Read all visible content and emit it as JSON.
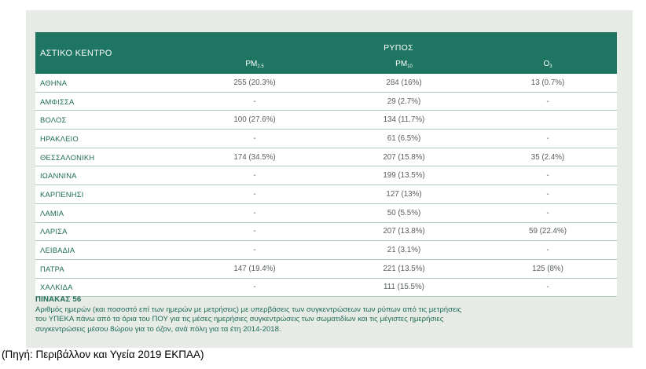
{
  "table": {
    "city_header": "ΑΣΤΙΚΟ ΚΕΝΤΡΟ",
    "group_header": "ΡΥΠΟΣ",
    "pollutants": [
      {
        "base": "PM",
        "sub": "2.5"
      },
      {
        "base": "PM",
        "sub": "10"
      },
      {
        "base": "O",
        "sub": "3"
      }
    ],
    "rows": [
      {
        "city": "ΑΘΗΝΑ",
        "pm25": "255 (20.3%)",
        "pm10": "284 (16%)",
        "o3": "13 (0.7%)"
      },
      {
        "city": "ΑΜΦΙΣΣΑ",
        "pm25": "-",
        "pm10": "29 (2.7%)",
        "o3": "-"
      },
      {
        "city": "ΒΟΛΟΣ",
        "pm25": "100 (27.6%)",
        "pm10": "134 (11.7%)",
        "o3": ""
      },
      {
        "city": "ΗΡΑΚΛΕΙΟ",
        "pm25": "-",
        "pm10": "61 (6.5%)",
        "o3": "-"
      },
      {
        "city": "ΘΕΣΣΑΛΟΝΙΚΗ",
        "pm25": "174 (34.5%)",
        "pm10": "207 (15.8%)",
        "o3": "35 (2.4%)"
      },
      {
        "city": "ΙΩΑΝΝΙΝΑ",
        "pm25": "-",
        "pm10": "199 (13.5%)",
        "o3": "-"
      },
      {
        "city": "ΚΑΡΠΕΝΗΣΙ",
        "pm25": "-",
        "pm10": "127 (13%)",
        "o3": "-"
      },
      {
        "city": "ΛΑΜΙΑ",
        "pm25": "-",
        "pm10": "50 (5.5%)",
        "o3": "-"
      },
      {
        "city": "ΛΑΡΙΣΑ",
        "pm25": "-",
        "pm10": "207 (13.8%)",
        "o3": "59 (22.4%)"
      },
      {
        "city": "ΛΕΙΒΑΔΙΑ",
        "pm25": "-",
        "pm10": "21 (3.1%)",
        "o3": "-"
      },
      {
        "city": "ΠΑΤΡΑ",
        "pm25": "147 (19.4%)",
        "pm10": "221 (13.5%)",
        "o3": "125 (8%)"
      },
      {
        "city": "ΧΑΛΚΙΔΑ",
        "pm25": "-",
        "pm10": "111 (15.5%)",
        "o3": "-"
      }
    ]
  },
  "caption": {
    "title": "ΠΙΝΑΚΑΣ 56",
    "lines": [
      "Αριθμός ημερών (και ποσοστό επί των ημερών με μετρήσεις) με υπερβάσεις των συγκεντρώσεων των ρύπων από τις μετρήσεις",
      "του ΥΠΕΚΑ πάνω από τα όρια του ΠΟΥ για τις μέσες ημερήσιες συγκεντρώσεις των σωματιδίων και τις μέγιστες ημερήσιες",
      "συγκεντρώσεις μέσου 8ώρου για το όζον, ανά πόλη για τα έτη 2014-2018."
    ]
  },
  "source": "(Πηγή: Περιβάλλον και Υγεία 2019 ΕΚΠΑΑ)",
  "colors": {
    "header_bg": "#1e7561",
    "panel_bg": "#e7ebe6",
    "accent_text": "#1e6b58"
  }
}
